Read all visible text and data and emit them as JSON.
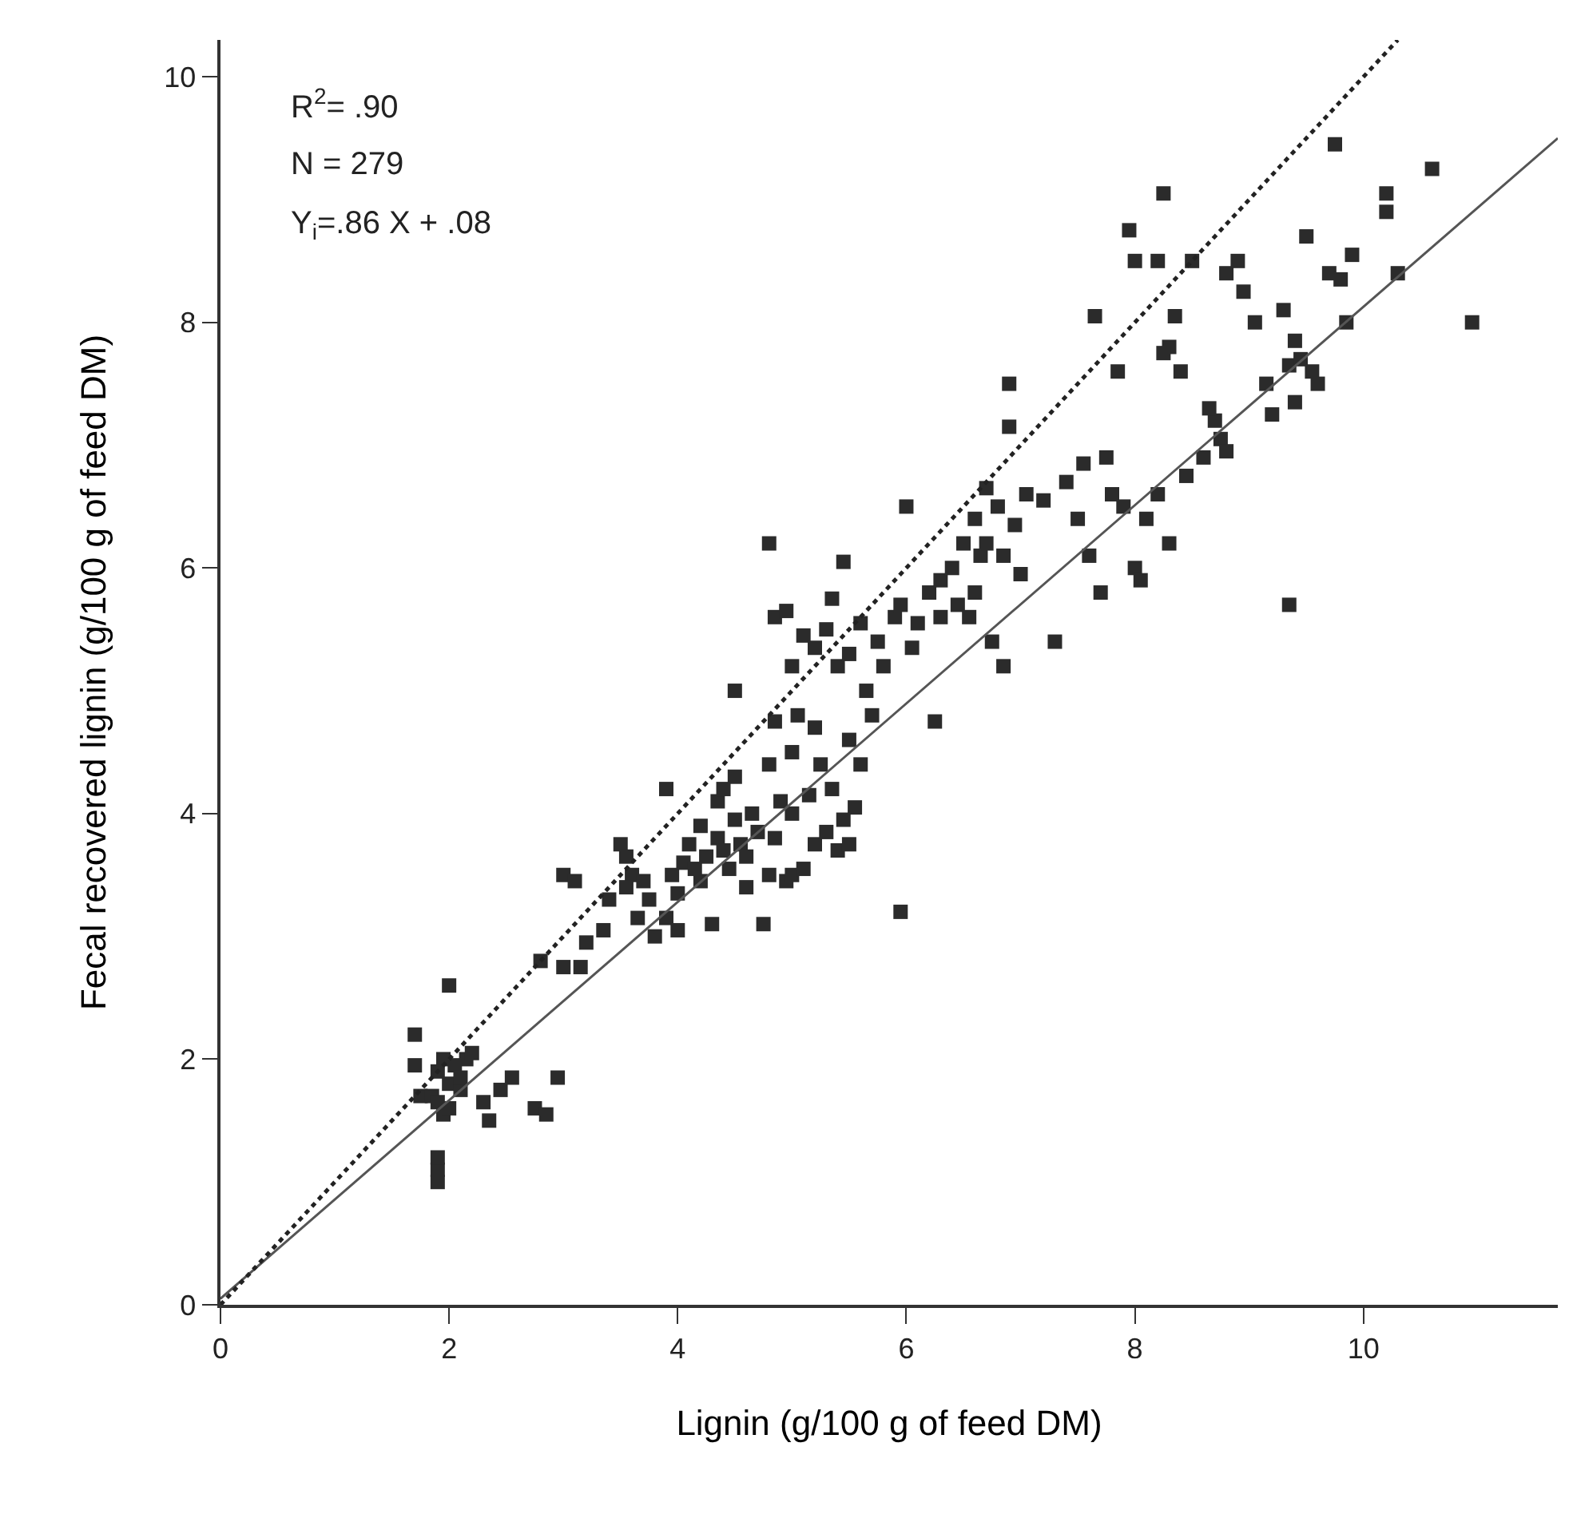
{
  "chart_data": {
    "type": "scatter",
    "xlabel": "Lignin (g/100 g of feed DM)",
    "ylabel": "Fecal recovered lignin (g/100 g of feed DM)",
    "annotations": [
      "R$^{2}$= .90",
      "N = 279",
      "Y$_{i}$=.86 X + .08"
    ],
    "xlim": [
      0,
      11.7
    ],
    "ylim": [
      0,
      10.3
    ],
    "xticks": [
      0,
      2,
      4,
      6,
      8,
      10
    ],
    "yticks": [
      0,
      2,
      4,
      6,
      8,
      10
    ],
    "grid": false,
    "series": [
      {
        "color": "#2b2b2b",
        "marker": "square",
        "x": [
          1.7,
          1.7,
          1.75,
          1.85,
          1.9,
          1.9,
          1.95,
          2.0,
          2.0,
          2.05,
          2.1,
          2.15,
          2.2,
          1.95,
          2.0,
          1.9,
          1.9,
          1.9,
          2.3,
          2.35,
          2.45,
          2.55,
          2.75,
          2.85,
          2.95,
          2.1,
          2.8,
          3.0,
          3.1,
          3.0,
          3.15,
          3.2,
          3.35,
          3.4,
          3.5,
          3.55,
          3.6,
          3.7,
          3.75,
          3.8,
          3.9,
          3.9,
          3.95,
          4.0,
          4.0,
          4.05,
          4.1,
          4.15,
          4.2,
          4.2,
          4.25,
          4.3,
          4.35,
          4.35,
          4.4,
          4.45,
          4.5,
          4.5,
          4.55,
          4.6,
          4.6,
          4.65,
          4.7,
          4.75,
          4.8,
          4.8,
          4.85,
          4.9,
          4.85,
          4.95,
          5.0,
          5.0,
          5.1,
          5.2,
          5.3,
          5.4,
          5.5,
          5.55,
          5.45,
          5.6,
          4.5,
          4.8,
          4.85,
          4.95,
          4.4,
          3.55,
          3.65,
          5.0,
          5.05,
          5.1,
          5.2,
          5.3,
          5.35,
          5.4,
          5.45,
          5.5,
          5.6,
          5.65,
          5.7,
          5.75,
          5.8,
          5.9,
          5.95,
          6.0,
          6.05,
          6.1,
          6.2,
          6.25,
          6.3,
          5.95,
          5.2,
          5.25,
          5.5,
          5.35,
          5.0,
          5.15,
          6.3,
          6.4,
          6.5,
          6.55,
          6.6,
          6.65,
          6.7,
          6.75,
          6.8,
          6.85,
          6.9,
          6.9,
          6.95,
          7.0,
          7.05,
          6.6,
          6.45,
          6.7,
          6.85,
          7.3,
          7.2,
          7.4,
          7.5,
          7.55,
          7.6,
          7.65,
          7.7,
          7.75,
          7.8,
          7.85,
          7.9,
          8.0,
          7.95,
          8.0,
          8.05,
          8.1,
          8.25,
          8.2,
          8.2,
          8.3,
          8.35,
          8.3,
          8.4,
          8.5,
          8.45,
          8.6,
          8.7,
          8.75,
          8.8,
          8.8,
          8.9,
          8.95,
          9.05,
          9.15,
          9.2,
          9.3,
          9.35,
          9.35,
          9.4,
          9.4,
          9.5,
          9.55,
          9.6,
          9.7,
          9.75,
          9.8,
          9.85,
          9.9,
          10.2,
          10.2,
          10.3,
          10.6,
          10.95,
          8.65,
          8.25,
          9.45
        ],
        "values": [
          2.2,
          1.95,
          1.7,
          1.7,
          1.65,
          1.9,
          2.0,
          1.8,
          2.6,
          1.95,
          1.75,
          2.0,
          2.05,
          1.55,
          1.6,
          1.0,
          1.1,
          1.2,
          1.65,
          1.5,
          1.75,
          1.85,
          1.6,
          1.55,
          1.85,
          1.85,
          2.8,
          3.5,
          3.45,
          2.75,
          2.75,
          2.95,
          3.05,
          3.3,
          3.75,
          3.65,
          3.5,
          3.45,
          3.3,
          3.0,
          3.15,
          4.2,
          3.5,
          3.35,
          3.05,
          3.6,
          3.75,
          3.55,
          3.9,
          3.45,
          3.65,
          3.1,
          3.8,
          4.1,
          3.7,
          3.55,
          3.95,
          4.3,
          3.75,
          3.65,
          3.4,
          4.0,
          3.85,
          3.1,
          3.5,
          4.4,
          4.75,
          4.1,
          3.8,
          3.45,
          3.5,
          4.5,
          3.55,
          3.75,
          3.85,
          3.7,
          3.75,
          4.05,
          3.95,
          4.4,
          5.0,
          6.2,
          5.6,
          5.65,
          4.2,
          3.4,
          3.15,
          5.2,
          4.8,
          5.45,
          5.35,
          5.5,
          5.75,
          5.2,
          6.05,
          5.3,
          5.55,
          5.0,
          4.8,
          5.4,
          5.2,
          5.6,
          5.7,
          6.5,
          5.35,
          5.55,
          5.8,
          4.75,
          5.6,
          3.2,
          4.7,
          4.4,
          4.6,
          4.2,
          4.0,
          4.15,
          5.9,
          6.0,
          6.2,
          5.6,
          6.4,
          6.1,
          6.65,
          5.4,
          6.5,
          5.2,
          7.5,
          7.15,
          6.35,
          5.95,
          6.6,
          5.8,
          5.7,
          6.2,
          6.1,
          5.4,
          6.55,
          6.7,
          6.4,
          6.85,
          6.1,
          8.05,
          5.8,
          6.9,
          6.6,
          7.6,
          6.5,
          8.5,
          8.75,
          6.0,
          5.9,
          6.4,
          9.05,
          8.5,
          6.6,
          6.2,
          8.05,
          7.8,
          7.6,
          8.5,
          6.75,
          6.9,
          7.2,
          7.05,
          6.95,
          8.4,
          8.5,
          8.25,
          8.0,
          7.5,
          7.25,
          8.1,
          7.65,
          5.7,
          7.85,
          7.35,
          8.7,
          7.6,
          7.5,
          8.4,
          9.45,
          8.35,
          8.0,
          8.55,
          8.9,
          9.05,
          8.4,
          9.25,
          8.0,
          7.3,
          7.75,
          7.7
        ]
      },
      {
        "type": "line",
        "color": "#555555",
        "line_style": "solid",
        "marker": "none",
        "x": [
          0,
          11.7
        ],
        "values": [
          0.05,
          9.5
        ]
      },
      {
        "type": "line",
        "color": "#222222",
        "line_style": "dotted",
        "marker": "none",
        "x": [
          0,
          10.3
        ],
        "values": [
          0,
          10.3
        ]
      }
    ]
  }
}
